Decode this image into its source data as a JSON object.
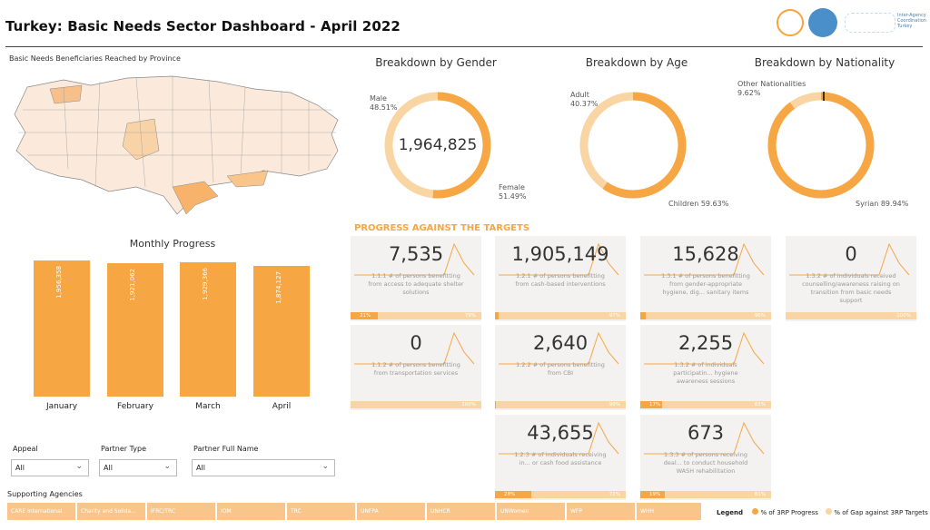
{
  "header": {
    "title": "Turkey: Basic Needs Sector Dashboard - April 2022",
    "logo_text": "Inter-Agency Coordination Turkey"
  },
  "map": {
    "title": "Basic Needs Beneficiaries Reached by Province"
  },
  "donuts": {
    "gender": {
      "title": "Breakdown by Gender",
      "center": "1,964,825",
      "a_label": "Male",
      "a_val": "48.51%",
      "b_label": "Female",
      "b_val": "51.49%"
    },
    "age": {
      "title": "Breakdown by Age",
      "a_label": "Adult",
      "a_val": "40.37%",
      "b_label": "Children 59.63%"
    },
    "nationality": {
      "title": "Breakdown by Nationality",
      "a_label": "Other Nationalities",
      "a_val": "9.62%",
      "b_label": "Syrian 89.94%"
    }
  },
  "monthly": {
    "title": "Monthly Progress",
    "months": [
      {
        "name": "January",
        "value": "1,956,358",
        "v": 1956358
      },
      {
        "name": "February",
        "value": "1,921,062",
        "v": 1921062
      },
      {
        "name": "March",
        "value": "1,929,366",
        "v": 1929366
      },
      {
        "name": "April",
        "value": "1,874,127",
        "v": 1874127
      }
    ]
  },
  "progress": {
    "title": "PROGRESS AGAINST THE TARGETS",
    "kpis": [
      {
        "num": "7,535",
        "desc": "1.1.1 # of persons benefitting from access to adequate shelter solutions",
        "prog": "21%",
        "gap": "79%",
        "p": 0.21
      },
      {
        "num": "1,905,149",
        "desc": "1.2.1 # of persons benefitting from cash-based interventions",
        "prog": "",
        "gap": "97%",
        "p": 0.03
      },
      {
        "num": "15,628",
        "desc": "1.3.1 # of persons benefitting from gender-appropriate hygiene, dig... sanitary items",
        "prog": "",
        "gap": "96%",
        "p": 0.04
      },
      {
        "num": "0",
        "desc": "1.3.2 # of individuals received counselling/awareness raising on transition from basic needs support",
        "prog": "",
        "gap": "100%",
        "p": 0
      },
      {
        "num": "0",
        "desc": "1.1.2 # of persons benefitting from transportation services",
        "prog": "",
        "gap": "100%",
        "p": 0
      },
      {
        "num": "2,640",
        "desc": "1.2.2 # of persons benefitting from CBI",
        "prog": "",
        "gap": "99%",
        "p": 0.01
      },
      {
        "num": "2,255",
        "desc": "1.3.2 # of individuals participatin... hygiene awareness sessions",
        "prog": "17%",
        "gap": "83%",
        "p": 0.17
      },
      {
        "num": "43,655",
        "desc": "1.2.3 # of individuals receiving in... or cash food assistance",
        "prog": "28%",
        "gap": "72%",
        "p": 0.28
      },
      {
        "num": "673",
        "desc": "1.3.3 # of persons receiving deal... to conduct household WASH rehabilitation",
        "prog": "19%",
        "gap": "81%",
        "p": 0.19
      }
    ]
  },
  "filters": [
    {
      "label": "Appeal",
      "value": "All"
    },
    {
      "label": "Partner Type",
      "value": "All"
    },
    {
      "label": "Partner Full Name",
      "value": "All"
    }
  ],
  "agencies": {
    "title": "Supporting Agencies",
    "items": [
      "CARE International",
      "Charity and Solida...",
      "IFRC/TRC",
      "IOM",
      "TRC",
      "UNFPA",
      "UNHCR",
      "UNWomen",
      "WFP",
      "WHH"
    ]
  },
  "legend": {
    "title": "Legend",
    "a": "% of 3RP Progress",
    "b": "% of Gap against 3RP Targets"
  },
  "colors": {
    "accent": "#f7a644",
    "light": "#f9d5a3"
  }
}
